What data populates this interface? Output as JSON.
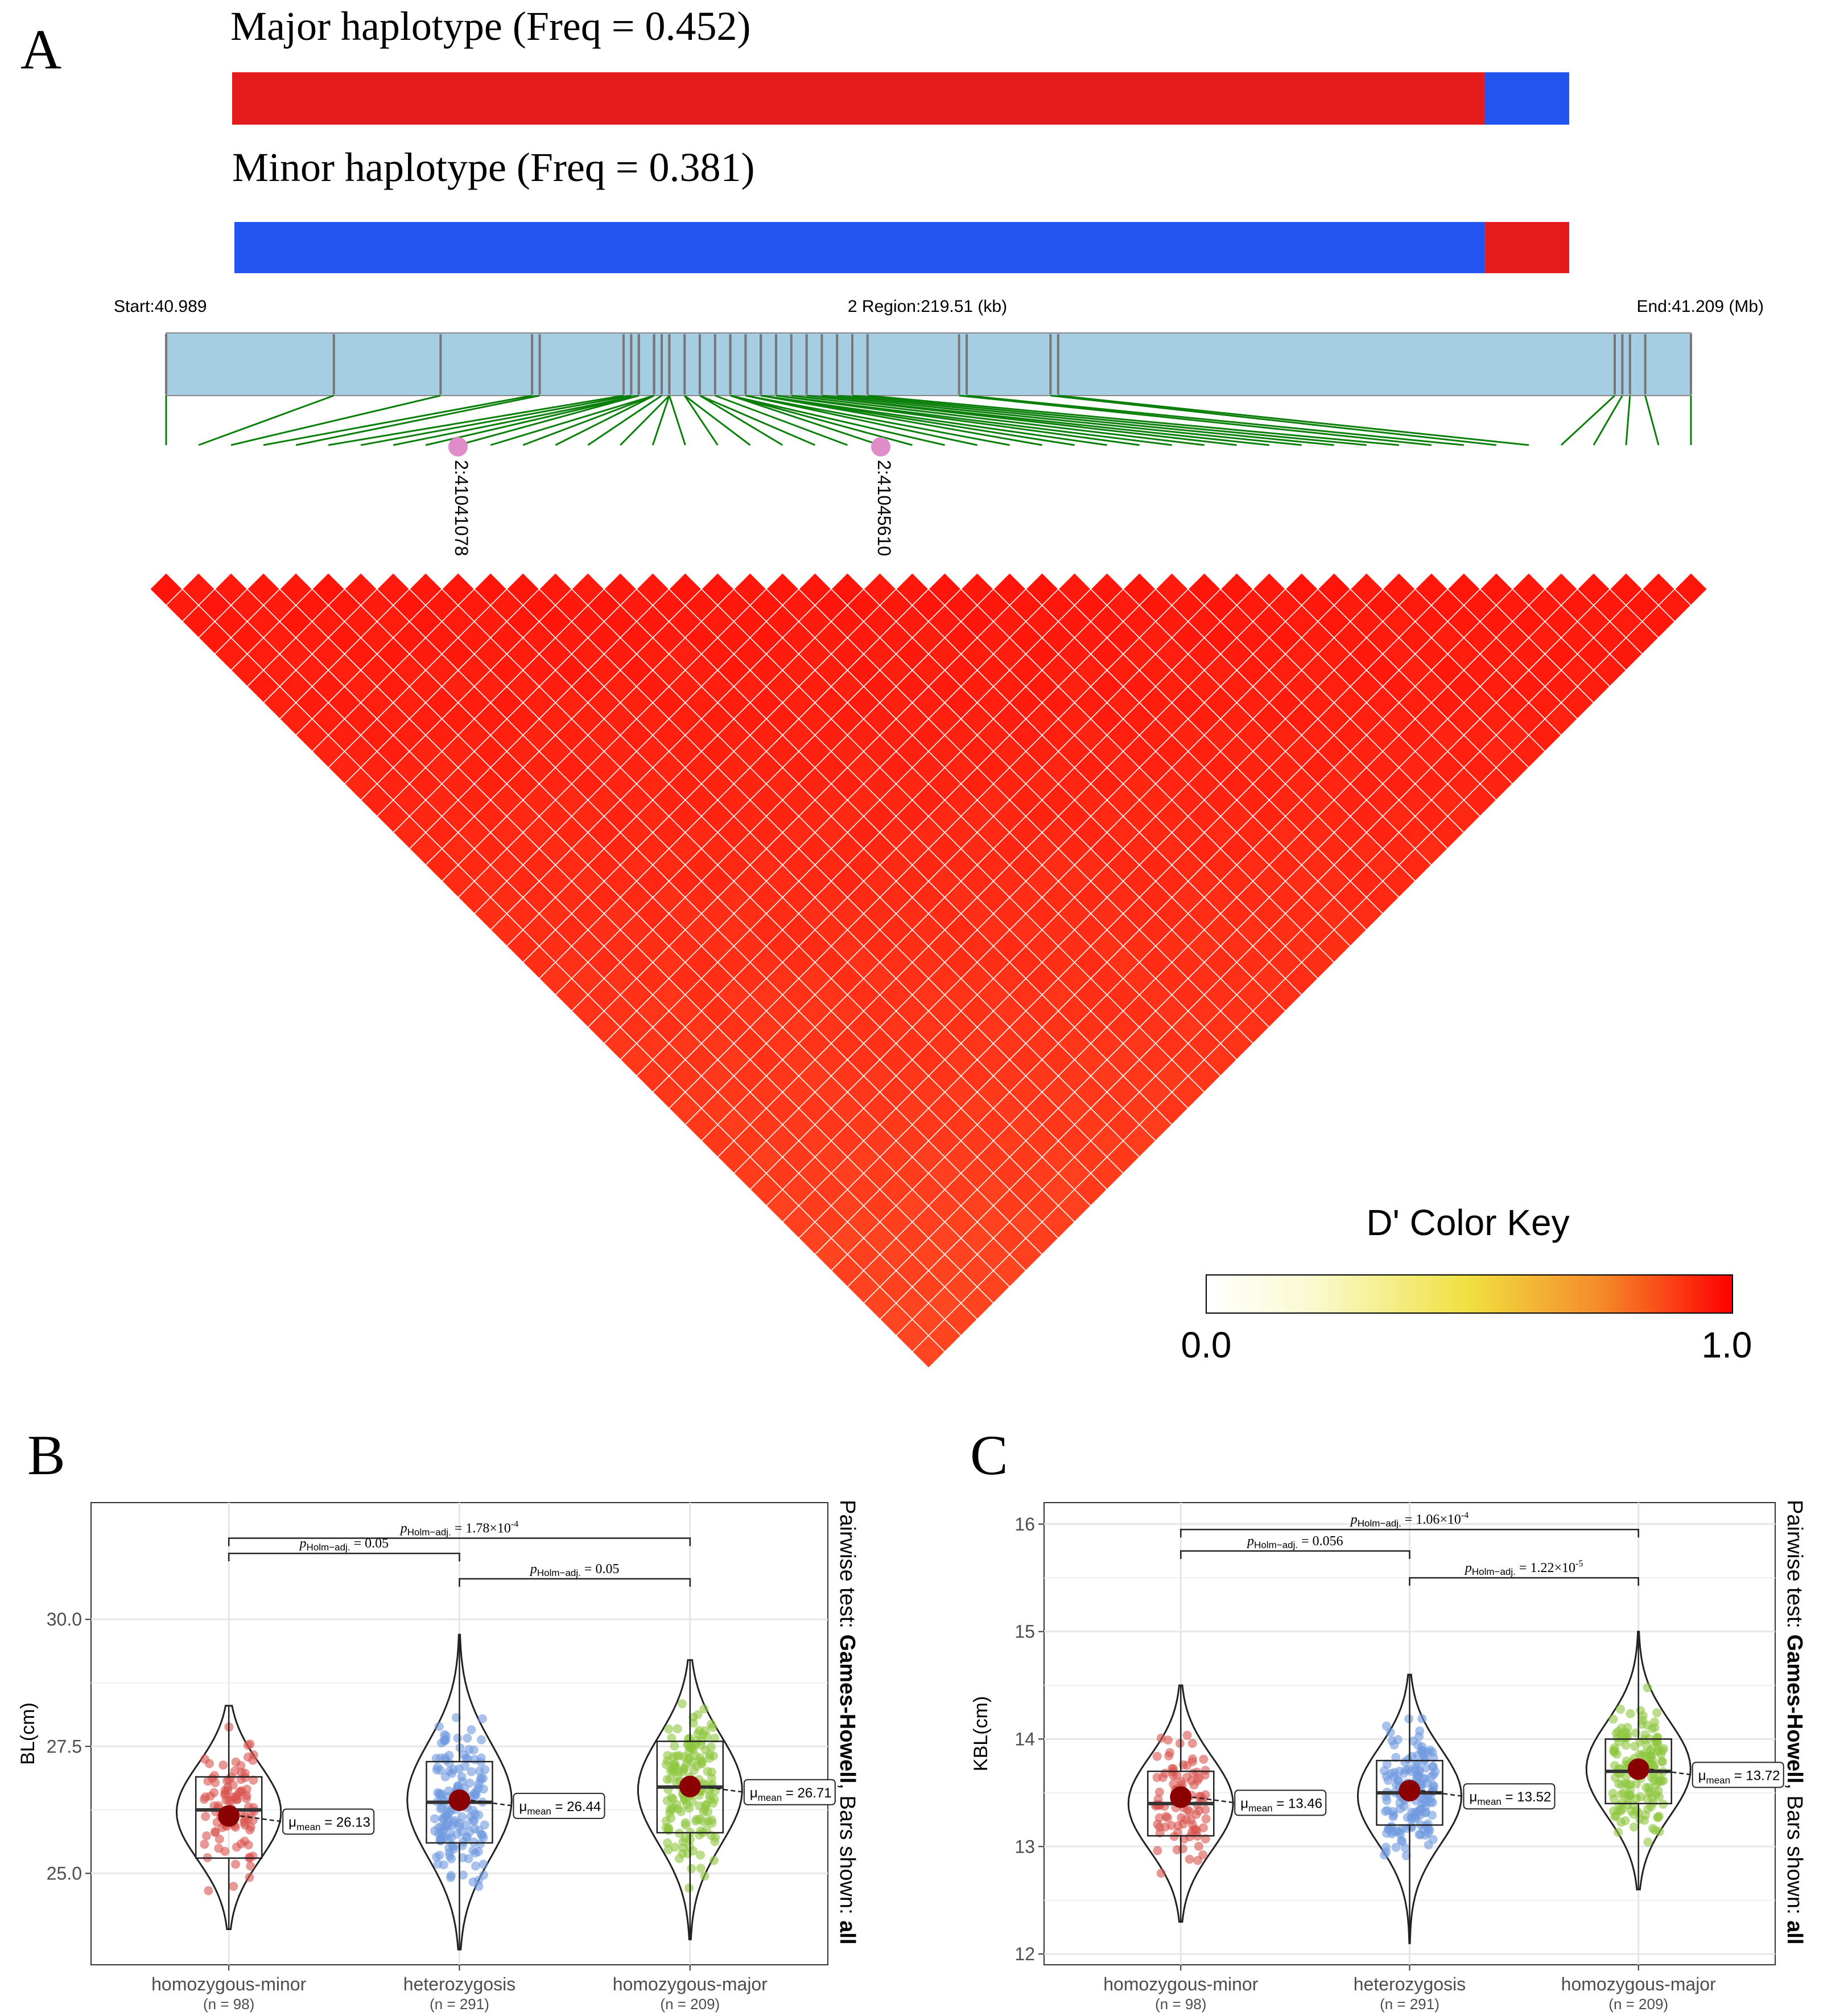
{
  "colors": {
    "major_red": "#e41a1c",
    "minor_blue": "#2255f0",
    "region_bar": "#a6cee3",
    "snp_line": "#0a7f0a",
    "snp_marker": "#e08cc8",
    "ld_high": "#ff1a0a",
    "ld_low": "#ff4a22",
    "grp_minor": "#d9534f",
    "grp_het": "#6f9ae0",
    "grp_major": "#8ec63f",
    "mean_dot": "#8b0000"
  },
  "panel_a": {
    "label": "A",
    "major": {
      "title": "Major haplotype (Freq = 0.452)",
      "freq": 0.452,
      "red_fraction": 0.937
    },
    "minor": {
      "title": "Minor haplotype (Freq = 0.381)",
      "freq": 0.381,
      "blue_fraction": 0.937
    },
    "start_label": "Start:40.989",
    "region_label": "2 Region:219.51 (kb)",
    "end_label": "End:41.209 (Mb)",
    "start_mb": 40.989,
    "end_mb": 41.209,
    "n_snps": 48,
    "highlighted": [
      {
        "label": "2:41041078",
        "pos_mb": 41.041078
      },
      {
        "label": "2:41045610",
        "pos_mb": 41.04561
      }
    ],
    "color_key": {
      "title": "D' Color Key",
      "min_label": "0.0",
      "max_label": "1.0",
      "min": 0.0,
      "max": 1.0
    }
  },
  "chart_data": [
    {
      "panel": "B",
      "type": "violin-box-scatter",
      "ylabel": "BL(cm)",
      "ylim": [
        23.2,
        32.3
      ],
      "yticks": [
        25.0,
        27.5,
        30.0
      ],
      "ytick_labels": [
        "25.0",
        "27.5",
        "30.0"
      ],
      "side_label_prefix": "Pairwise test: ",
      "side_label_bold": "Games-Howell",
      "side_label_mid": ", Bars shown: ",
      "side_label_bold2": "all",
      "groups": [
        {
          "name": "homozygous-minor",
          "n_label": "(n = 98)",
          "n": 98,
          "mean": 26.13,
          "mean_label": "26.13",
          "median": 26.25,
          "q1": 25.3,
          "q3": 26.9,
          "min": 23.9,
          "max": 28.3,
          "sd": 1.0
        },
        {
          "name": "heterozygosis",
          "n_label": "(n = 291)",
          "n": 291,
          "mean": 26.44,
          "mean_label": "26.44",
          "median": 26.4,
          "q1": 25.6,
          "q3": 27.2,
          "min": 23.5,
          "max": 29.7,
          "sd": 1.15
        },
        {
          "name": "homozygous-major",
          "n_label": "(n = 209)",
          "n": 209,
          "mean": 26.71,
          "mean_label": "26.71",
          "median": 26.7,
          "q1": 25.8,
          "q3": 27.6,
          "min": 23.7,
          "max": 29.2,
          "sd": 1.1
        }
      ],
      "comparisons": [
        {
          "from": 0,
          "to": 2,
          "y": 31.6,
          "p_value": "1.78×10",
          "p_exp": "-4"
        },
        {
          "from": 0,
          "to": 1,
          "y": 31.3,
          "p_value": "0.05",
          "p_exp": ""
        },
        {
          "from": 1,
          "to": 2,
          "y": 30.8,
          "p_value": "0.05",
          "p_exp": ""
        }
      ]
    },
    {
      "panel": "C",
      "type": "violin-box-scatter",
      "ylabel": "KBL(cm)",
      "ylim": [
        11.9,
        16.2
      ],
      "yticks": [
        12,
        13,
        14,
        15,
        16
      ],
      "ytick_labels": [
        "12",
        "13",
        "14",
        "15",
        "16"
      ],
      "side_label_prefix": "Pairwise test: ",
      "side_label_bold": "Games-Howell",
      "side_label_mid": ", Bars shown: ",
      "side_label_bold2": "all",
      "groups": [
        {
          "name": "homozygous-minor",
          "n_label": "(n = 98)",
          "n": 98,
          "mean": 13.46,
          "mean_label": "13.46",
          "median": 13.4,
          "q1": 13.1,
          "q3": 13.7,
          "min": 12.3,
          "max": 14.5,
          "sd": 0.45
        },
        {
          "name": "heterozygosis",
          "n_label": "(n = 291)",
          "n": 291,
          "mean": 13.52,
          "mean_label": "13.52",
          "median": 13.5,
          "q1": 13.2,
          "q3": 13.8,
          "min": 12.1,
          "max": 14.6,
          "sd": 0.45
        },
        {
          "name": "homozygous-major",
          "n_label": "(n = 209)",
          "n": 209,
          "mean": 13.72,
          "mean_label": "13.72",
          "median": 13.7,
          "q1": 13.4,
          "q3": 14.0,
          "min": 12.6,
          "max": 15.0,
          "sd": 0.45
        }
      ],
      "comparisons": [
        {
          "from": 0,
          "to": 2,
          "y": 15.95,
          "p_value": "1.06×10",
          "p_exp": "-4"
        },
        {
          "from": 0,
          "to": 1,
          "y": 15.75,
          "p_value": "0.056",
          "p_exp": ""
        },
        {
          "from": 1,
          "to": 2,
          "y": 15.5,
          "p_value": "1.22×10",
          "p_exp": "-5"
        }
      ]
    }
  ],
  "panel_b": {
    "label": "B",
    "mean_prefix": "mean"
  },
  "panel_c": {
    "label": "C",
    "mean_prefix": "mean"
  },
  "stat_text": {
    "p_sub": "Holm−adj.",
    "p_sym": "p",
    "mu": "μ",
    "eq": " = "
  }
}
